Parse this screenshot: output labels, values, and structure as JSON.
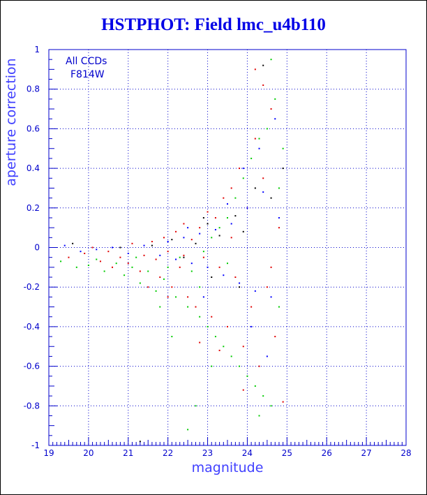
{
  "chart_data": {
    "type": "scatter",
    "title": "HSTPHOT: Field lmc_u4b110",
    "xlabel": "magnitude",
    "ylabel": "aperture correction",
    "annotations": [
      "All CCDs",
      "F814W"
    ],
    "xlim": [
      19,
      28
    ],
    "ylim": [
      -1,
      1
    ],
    "x_ticks": [
      "19",
      "20",
      "21",
      "22",
      "23",
      "24",
      "25",
      "26",
      "27",
      "28"
    ],
    "y_ticks": [
      "-1",
      "-0.8",
      "-0.6",
      "-0.4",
      "-0.2",
      "0",
      "0.2",
      "0.4",
      "0.6",
      "0.8",
      "1"
    ],
    "grid": true,
    "grid_style": "dotted",
    "colors": {
      "axis": "#0000cc",
      "title": "#0000e6",
      "grid": "#0000cc"
    },
    "series": [
      {
        "color": "#e00000",
        "points": [
          [
            19.5,
            -0.05
          ],
          [
            19.9,
            -0.03
          ],
          [
            20.1,
            0.0
          ],
          [
            20.3,
            -0.07
          ],
          [
            20.5,
            -0.02
          ],
          [
            20.6,
            -0.1
          ],
          [
            20.8,
            -0.05
          ],
          [
            21.0,
            -0.08
          ],
          [
            21.1,
            0.02
          ],
          [
            21.3,
            -0.12
          ],
          [
            21.4,
            -0.04
          ],
          [
            21.6,
            0.03
          ],
          [
            21.7,
            -0.06
          ],
          [
            21.8,
            -0.15
          ],
          [
            21.9,
            0.05
          ],
          [
            22.0,
            -0.02
          ],
          [
            22.1,
            -0.2
          ],
          [
            22.2,
            0.08
          ],
          [
            22.3,
            -0.1
          ],
          [
            22.4,
            0.12
          ],
          [
            22.5,
            -0.25
          ],
          [
            22.6,
            0.04
          ],
          [
            22.7,
            -0.3
          ],
          [
            22.8,
            0.1
          ],
          [
            22.9,
            -0.05
          ],
          [
            23.0,
            0.18
          ],
          [
            23.1,
            -0.35
          ],
          [
            23.2,
            0.15
          ],
          [
            23.3,
            -0.1
          ],
          [
            23.4,
            0.25
          ],
          [
            23.5,
            -0.4
          ],
          [
            23.6,
            0.3
          ],
          [
            23.7,
            -0.15
          ],
          [
            23.8,
            0.4
          ],
          [
            23.9,
            -0.5
          ],
          [
            24.0,
            0.2
          ],
          [
            24.1,
            -0.3
          ],
          [
            24.2,
            0.55
          ],
          [
            24.3,
            -0.6
          ],
          [
            24.4,
            0.35
          ],
          [
            24.5,
            -0.2
          ],
          [
            24.6,
            0.7
          ],
          [
            24.7,
            -0.45
          ],
          [
            24.8,
            0.1
          ],
          [
            24.9,
            -0.78
          ],
          [
            22.8,
            -0.48
          ],
          [
            23.3,
            -0.52
          ],
          [
            23.9,
            -0.72
          ],
          [
            24.4,
            0.82
          ],
          [
            24.2,
            0.9
          ],
          [
            21.5,
            -0.2
          ],
          [
            22.0,
            -0.25
          ],
          [
            23.6,
            0.05
          ],
          [
            22.4,
            -0.04
          ],
          [
            24.6,
            -0.1
          ]
        ]
      },
      {
        "color": "#00cc00",
        "points": [
          [
            19.3,
            -0.07
          ],
          [
            19.7,
            -0.1
          ],
          [
            20.0,
            -0.09
          ],
          [
            20.4,
            -0.12
          ],
          [
            20.7,
            -0.08
          ],
          [
            20.9,
            -0.14
          ],
          [
            21.1,
            -0.1
          ],
          [
            21.3,
            -0.18
          ],
          [
            21.5,
            -0.12
          ],
          [
            21.7,
            -0.22
          ],
          [
            21.9,
            -0.16
          ],
          [
            22.0,
            -0.1
          ],
          [
            22.2,
            -0.25
          ],
          [
            22.3,
            -0.05
          ],
          [
            22.5,
            -0.3
          ],
          [
            22.6,
            -0.12
          ],
          [
            22.8,
            -0.35
          ],
          [
            22.9,
            -0.02
          ],
          [
            23.0,
            -0.4
          ],
          [
            23.1,
            0.05
          ],
          [
            23.2,
            -0.45
          ],
          [
            23.3,
            0.1
          ],
          [
            23.4,
            -0.5
          ],
          [
            23.5,
            0.15
          ],
          [
            23.6,
            -0.55
          ],
          [
            23.7,
            0.25
          ],
          [
            23.8,
            -0.6
          ],
          [
            23.9,
            0.35
          ],
          [
            24.0,
            -0.65
          ],
          [
            24.1,
            0.45
          ],
          [
            24.2,
            -0.7
          ],
          [
            24.3,
            0.55
          ],
          [
            24.4,
            -0.75
          ],
          [
            24.5,
            0.6
          ],
          [
            24.6,
            -0.8
          ],
          [
            24.7,
            0.75
          ],
          [
            24.8,
            -0.3
          ],
          [
            24.9,
            0.5
          ],
          [
            22.7,
            -0.8
          ],
          [
            22.5,
            -0.92
          ],
          [
            23.1,
            -0.6
          ],
          [
            21.8,
            -0.3
          ],
          [
            22.1,
            -0.45
          ],
          [
            24.3,
            -0.85
          ],
          [
            24.6,
            0.95
          ],
          [
            23.5,
            -0.08
          ],
          [
            22.8,
            -0.2
          ],
          [
            21.2,
            -0.05
          ],
          [
            20.2,
            -0.06
          ],
          [
            24.8,
            0.3
          ]
        ]
      },
      {
        "color": "#0000ff",
        "points": [
          [
            19.4,
            0.01
          ],
          [
            19.8,
            -0.02
          ],
          [
            20.2,
            -0.01
          ],
          [
            20.6,
            0.0
          ],
          [
            21.0,
            -0.03
          ],
          [
            21.4,
            0.01
          ],
          [
            21.8,
            -0.04
          ],
          [
            22.0,
            0.03
          ],
          [
            22.2,
            -0.06
          ],
          [
            22.4,
            0.05
          ],
          [
            22.6,
            -0.08
          ],
          [
            22.8,
            0.07
          ],
          [
            23.0,
            -0.1
          ],
          [
            23.2,
            0.09
          ],
          [
            23.4,
            -0.14
          ],
          [
            23.6,
            0.12
          ],
          [
            23.8,
            -0.18
          ],
          [
            24.0,
            0.2
          ],
          [
            24.2,
            -0.22
          ],
          [
            24.4,
            0.28
          ],
          [
            24.6,
            -0.25
          ],
          [
            24.8,
            0.15
          ],
          [
            23.9,
            0.4
          ],
          [
            24.3,
            0.5
          ],
          [
            24.1,
            -0.4
          ],
          [
            23.5,
            0.22
          ],
          [
            22.9,
            -0.25
          ],
          [
            24.7,
            0.65
          ],
          [
            24.5,
            -0.55
          ],
          [
            22.5,
            0.1
          ]
        ]
      },
      {
        "color": "#000000",
        "points": [
          [
            19.6,
            0.02
          ],
          [
            20.8,
            0.0
          ],
          [
            21.6,
            0.01
          ],
          [
            22.1,
            0.04
          ],
          [
            22.7,
            0.02
          ],
          [
            23.0,
            0.12
          ],
          [
            23.3,
            0.06
          ],
          [
            23.7,
            0.16
          ],
          [
            23.9,
            0.08
          ],
          [
            24.2,
            0.3
          ],
          [
            24.4,
            0.92
          ],
          [
            24.6,
            0.25
          ],
          [
            23.1,
            -0.15
          ],
          [
            22.4,
            -0.05
          ],
          [
            21.3,
            -0.98
          ],
          [
            24.9,
            0.4
          ],
          [
            23.8,
            -0.2
          ],
          [
            22.9,
            0.15
          ]
        ]
      }
    ]
  }
}
